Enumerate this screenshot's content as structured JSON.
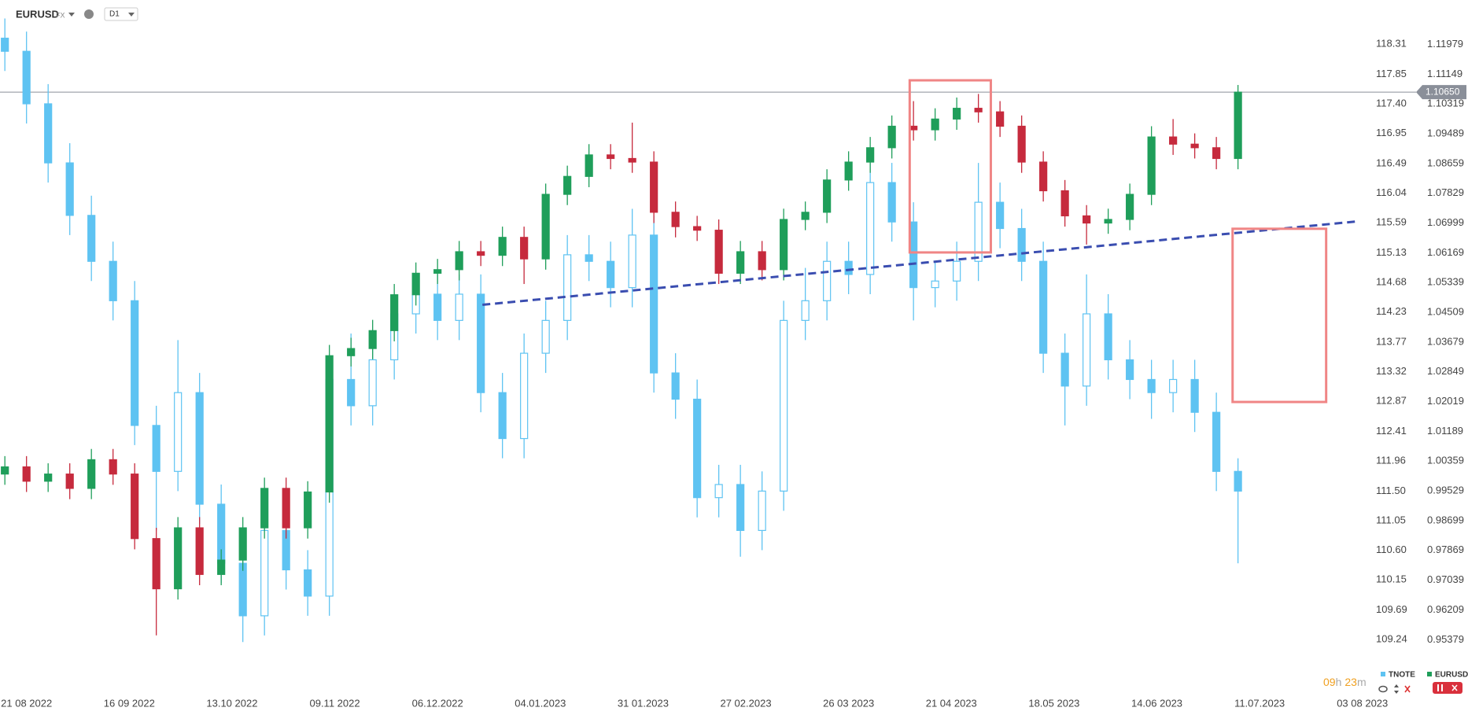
{
  "header": {
    "symbol": "EURUSD",
    "market": "FX",
    "interval": "D1"
  },
  "timer": [
    "09",
    "h",
    "23",
    "m"
  ],
  "chart_data": {
    "type": "candlestick",
    "xlim": [
      -0.9,
      252.2
    ],
    "xticks": [
      {
        "value": 4,
        "label": "21 08 2022"
      },
      {
        "value": 23,
        "label": "16 09 2022"
      },
      {
        "value": 42,
        "label": "13.10 2022"
      },
      {
        "value": 61,
        "label": "09.11 2022"
      },
      {
        "value": 80,
        "label": "06.12.2022"
      },
      {
        "value": 99,
        "label": "04.01.2023"
      },
      {
        "value": 118,
        "label": "31 01.2023"
      },
      {
        "value": 137,
        "label": "27 02.2023"
      },
      {
        "value": 156,
        "label": "26 03 2023"
      },
      {
        "value": 175,
        "label": "21 04 2023"
      },
      {
        "value": 194,
        "label": "18.05 2023"
      },
      {
        "value": 213,
        "label": "14.06 2023"
      },
      {
        "value": 232,
        "label": "11.07.2023"
      },
      {
        "value": 251,
        "label": "03 08 2023"
      }
    ],
    "x": [
      0,
      4,
      8,
      12,
      16,
      20,
      24,
      28,
      32,
      36,
      40,
      44,
      48,
      52,
      56,
      60,
      64,
      68,
      72,
      76,
      80,
      84,
      88,
      92,
      96,
      100,
      104,
      108,
      112,
      116,
      120,
      124,
      128,
      132,
      136,
      140,
      144,
      148,
      152,
      156,
      160,
      164,
      168,
      172,
      176,
      180,
      184,
      188,
      192,
      196,
      200,
      204,
      208,
      212,
      216,
      220,
      224,
      228
    ],
    "ylim": [
      0.9407,
      1.1243
    ],
    "yticks": [
      1.11979,
      1.11149,
      1.10319,
      1.09489,
      1.08659,
      1.07829,
      1.06999,
      1.06169,
      1.05339,
      1.04509,
      1.03679,
      1.02849,
      1.02019,
      1.01189,
      1.00359,
      0.99529,
      0.98699,
      0.97869,
      0.97039,
      0.96209,
      0.95379
    ],
    "y2lim": [
      108.52,
      118.55
    ],
    "y2ticks": [
      118.31,
      117.85,
      {
        "value": 117.4,
        "label": "117.40"
      },
      116.95,
      116.49,
      116.04,
      115.59,
      115.13,
      114.68,
      114.23,
      113.77,
      113.32,
      112.87,
      112.41,
      111.96,
      {
        "value": 111.5,
        "label": "111.50"
      },
      111.05,
      {
        "value": 110.6,
        "label": "110.60"
      },
      110.15,
      109.69,
      109.24
    ],
    "series": [
      {
        "name": "TNOTE",
        "axis": "y2",
        "color": "#5ec3f2",
        "open": [
          118.4,
          118.2,
          117.4,
          116.5,
          115.7,
          115.0,
          114.4,
          112.5,
          111.8,
          113.0,
          111.3,
          110.4,
          109.6,
          110.9,
          110.3,
          109.9,
          113.2,
          112.8,
          113.5,
          114.2,
          114.5,
          114.1,
          114.5,
          113.0,
          112.3,
          113.6,
          114.1,
          115.1,
          115.0,
          114.6,
          115.4,
          113.3,
          112.9,
          111.4,
          111.6,
          110.9,
          111.5,
          114.1,
          114.4,
          115.0,
          114.8,
          116.2,
          115.6,
          114.6,
          114.7,
          115.0,
          115.9,
          115.5,
          115.0,
          113.6,
          113.1,
          114.2,
          113.5,
          113.2,
          113.0,
          113.2,
          112.7,
          111.8
        ],
        "high": [
          118.7,
          118.5,
          117.7,
          116.8,
          116.0,
          115.3,
          114.7,
          112.8,
          113.8,
          113.3,
          111.6,
          110.7,
          111.2,
          111.2,
          110.6,
          113.5,
          113.9,
          113.8,
          114.5,
          114.8,
          114.8,
          114.8,
          114.8,
          113.3,
          113.9,
          114.4,
          115.4,
          115.4,
          115.3,
          115.8,
          115.7,
          113.6,
          113.2,
          111.9,
          111.9,
          111.8,
          114.4,
          114.9,
          115.3,
          115.3,
          116.5,
          116.5,
          115.9,
          115.0,
          115.3,
          116.5,
          116.2,
          115.8,
          115.3,
          113.9,
          114.8,
          114.5,
          113.8,
          113.5,
          113.5,
          113.5,
          113.0,
          112.0
        ],
        "low": [
          117.9,
          117.1,
          116.2,
          115.4,
          114.7,
          114.1,
          112.2,
          110.9,
          111.5,
          111.0,
          110.1,
          109.2,
          109.3,
          110.0,
          109.6,
          109.6,
          112.5,
          112.5,
          113.2,
          113.9,
          113.8,
          113.8,
          112.7,
          112.0,
          112.0,
          113.3,
          113.8,
          114.7,
          114.3,
          114.3,
          113.0,
          112.6,
          111.1,
          111.1,
          110.5,
          110.6,
          111.2,
          113.8,
          114.1,
          114.5,
          114.5,
          115.3,
          114.1,
          114.3,
          114.4,
          114.7,
          115.2,
          114.7,
          113.3,
          112.5,
          112.8,
          113.2,
          112.9,
          112.6,
          112.7,
          112.4,
          111.5,
          110.4
        ],
        "close": [
          118.2,
          117.4,
          116.5,
          115.7,
          115.0,
          114.4,
          112.5,
          111.8,
          113.0,
          111.3,
          110.4,
          109.6,
          110.9,
          110.3,
          109.9,
          113.2,
          112.8,
          113.5,
          114.2,
          114.5,
          114.1,
          114.5,
          113.0,
          112.3,
          113.6,
          114.1,
          115.1,
          115.0,
          114.6,
          115.4,
          113.3,
          112.9,
          111.4,
          111.6,
          110.9,
          111.5,
          114.1,
          114.4,
          115.0,
          114.8,
          116.2,
          115.6,
          114.6,
          114.7,
          115.0,
          115.9,
          115.5,
          115.0,
          113.6,
          113.1,
          114.2,
          113.5,
          113.2,
          113.0,
          113.2,
          112.7,
          111.8,
          111.5
        ]
      },
      {
        "name": "EURUSD",
        "color": "#1f9e5a",
        "down_color": "#c62a3d",
        "open": [
          1.0,
          1.002,
          0.998,
          1.0,
          0.996,
          1.004,
          1.0,
          0.982,
          0.968,
          0.985,
          0.972,
          0.976,
          0.985,
          0.996,
          0.985,
          0.995,
          1.033,
          1.035,
          1.04,
          1.05,
          1.056,
          1.057,
          1.062,
          1.061,
          1.066,
          1.06,
          1.078,
          1.083,
          1.089,
          1.088,
          1.087,
          1.073,
          1.069,
          1.068,
          1.056,
          1.062,
          1.057,
          1.071,
          1.073,
          1.082,
          1.087,
          1.091,
          1.097,
          1.096,
          1.099,
          1.102,
          1.101,
          1.097,
          1.087,
          1.079,
          1.072,
          1.07,
          1.071,
          1.078,
          1.094,
          1.092,
          1.091,
          1.088
        ],
        "high": [
          1.005,
          1.005,
          1.003,
          1.003,
          1.007,
          1.007,
          1.003,
          0.985,
          0.988,
          0.988,
          0.979,
          0.988,
          0.999,
          0.999,
          0.998,
          1.036,
          1.038,
          1.043,
          1.053,
          1.059,
          1.06,
          1.065,
          1.065,
          1.069,
          1.069,
          1.081,
          1.086,
          1.092,
          1.092,
          1.098,
          1.09,
          1.076,
          1.072,
          1.071,
          1.065,
          1.065,
          1.074,
          1.076,
          1.085,
          1.09,
          1.094,
          1.1,
          1.104,
          1.102,
          1.105,
          1.106,
          1.104,
          1.1,
          1.09,
          1.082,
          1.075,
          1.074,
          1.081,
          1.097,
          1.099,
          1.095,
          1.094,
          1.1085
        ],
        "low": [
          0.997,
          0.995,
          0.995,
          0.993,
          0.993,
          0.997,
          0.979,
          0.955,
          0.965,
          0.969,
          0.969,
          0.973,
          0.982,
          0.982,
          0.982,
          0.992,
          1.03,
          1.032,
          1.037,
          1.047,
          1.053,
          1.054,
          1.058,
          1.058,
          1.053,
          1.057,
          1.075,
          1.08,
          1.085,
          1.084,
          1.07,
          1.066,
          1.065,
          1.053,
          1.053,
          1.054,
          1.054,
          1.068,
          1.07,
          1.079,
          1.084,
          1.088,
          1.093,
          1.093,
          1.096,
          1.098,
          1.094,
          1.084,
          1.076,
          1.069,
          1.064,
          1.067,
          1.068,
          1.075,
          1.089,
          1.088,
          1.085,
          1.085
        ],
        "close": [
          1.002,
          0.998,
          1.0,
          0.996,
          1.004,
          1.0,
          0.982,
          0.968,
          0.985,
          0.972,
          0.976,
          0.985,
          0.996,
          0.985,
          0.995,
          1.033,
          1.035,
          1.04,
          1.05,
          1.056,
          1.057,
          1.062,
          1.061,
          1.066,
          1.06,
          1.078,
          1.083,
          1.089,
          1.088,
          1.087,
          1.073,
          1.069,
          1.068,
          1.056,
          1.062,
          1.057,
          1.071,
          1.073,
          1.082,
          1.087,
          1.091,
          1.097,
          1.096,
          1.099,
          1.102,
          1.101,
          1.097,
          1.087,
          1.079,
          1.072,
          1.07,
          1.071,
          1.078,
          1.094,
          1.092,
          1.091,
          1.088,
          1.1065
        ]
      }
    ],
    "last_price": {
      "value": 1.1065,
      "label": "1.10650",
      "color": "#8a8f99"
    },
    "trendline": {
      "x": [
        88.3,
        250.4
      ],
      "y": [
        1.0472,
        1.0705
      ],
      "color": "#3a4db0"
    },
    "boxes": [
      {
        "x": [
          167.3,
          182.3
        ],
        "y": [
          1.0618,
          1.1098
        ],
        "color": "#f08585"
      },
      {
        "x": [
          227,
          244.3
        ],
        "y": [
          1.0201,
          1.0684
        ],
        "color": "#f08585"
      }
    ]
  }
}
